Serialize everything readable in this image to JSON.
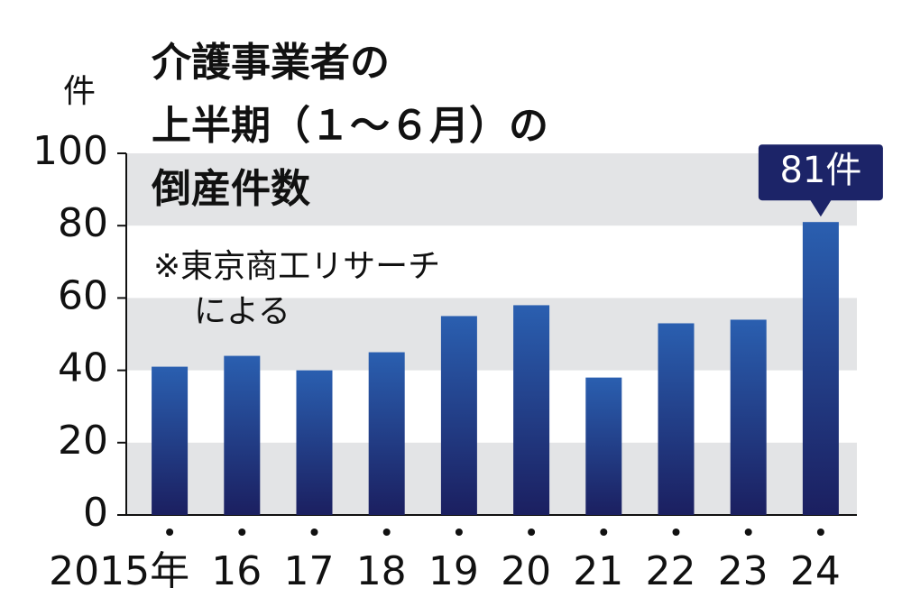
{
  "chart_data": {
    "type": "bar",
    "title": [
      "介護事業者の",
      "上半期（１～６月）の",
      "倒産件数"
    ],
    "note": [
      "※東京商工リサーチ",
      "による"
    ],
    "y_unit": "件",
    "categories": [
      "2015年",
      "16",
      "17",
      "18",
      "19",
      "20",
      "21",
      "22",
      "23",
      "24"
    ],
    "values": [
      41,
      44,
      40,
      45,
      55,
      58,
      38,
      53,
      54,
      81
    ],
    "value_labels": [
      null,
      null,
      null,
      null,
      null,
      null,
      null,
      null,
      null,
      "81件"
    ],
    "color": "#2a5fb0",
    "ylim": [
      0,
      100
    ],
    "yticks": [
      0,
      20,
      40,
      60,
      80,
      100
    ],
    "grid": true
  }
}
